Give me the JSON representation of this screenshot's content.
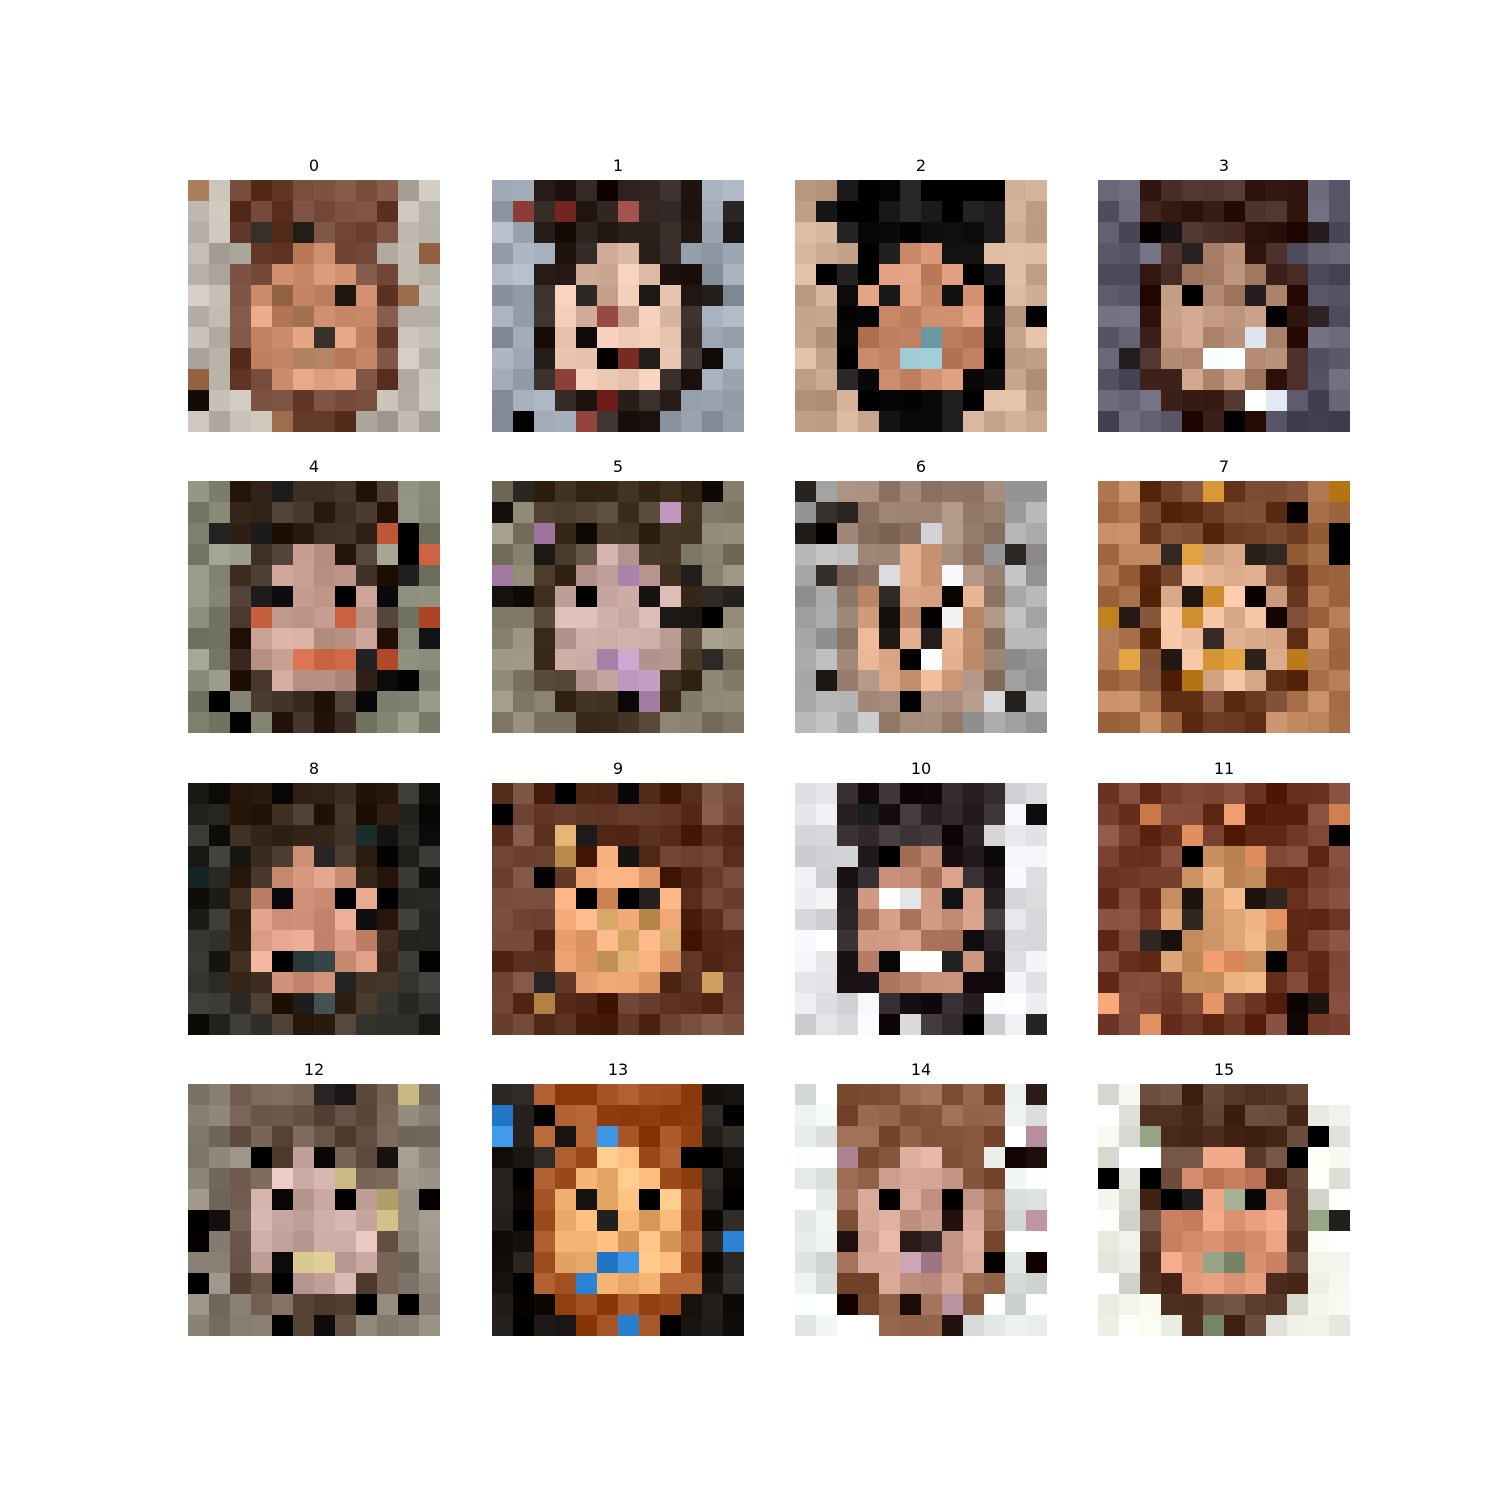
{
  "figure": {
    "panel_labels": [
      "0",
      "1",
      "2",
      "3",
      "4",
      "5",
      "6",
      "7",
      "8",
      "9",
      "10",
      "11",
      "12",
      "13",
      "14",
      "15"
    ],
    "palettes": [
      {
        "bg": "#b8b2a8",
        "hair": "#6a4030",
        "skin": "#d09070",
        "dark": "#1e1810",
        "accent": "#9a6a4a"
      },
      {
        "bg": "#9aa4b0",
        "hair": "#2a1e1a",
        "skin": "#e0bca8",
        "dark": "#140e0c",
        "accent": "#8a3a34"
      },
      {
        "bg": "#caa890",
        "hair": "#0c0a0a",
        "skin": "#c88868",
        "dark": "#050505",
        "accent": "#88b4c0"
      },
      {
        "bg": "#5a5868",
        "hair": "#3a2018",
        "skin": "#b89078",
        "dark": "#100808",
        "accent": "#e8eef6"
      },
      {
        "bg": "#8a8a78",
        "hair": "#3a2a20",
        "skin": "#c0988c",
        "dark": "#060608",
        "accent": "#c86040"
      },
      {
        "bg": "#8a8470",
        "hair": "#4a3a2a",
        "skin": "#c8a8a0",
        "dark": "#100c0a",
        "accent": "#b890b8"
      },
      {
        "bg": "#a8a8a8",
        "hair": "#9a8070",
        "skin": "#d4a080",
        "dark": "#18120e",
        "accent": "#e8e8ea"
      },
      {
        "bg": "#b07850",
        "hair": "#6a3a20",
        "skin": "#e0b090",
        "dark": "#180c06",
        "accent": "#d09030"
      },
      {
        "bg": "#26241e",
        "hair": "#3a2a1e",
        "skin": "#d89a80",
        "dark": "#0a0808",
        "accent": "#2a3a3a"
      },
      {
        "bg": "#6a4030",
        "hair": "#5a3020",
        "skin": "#e8a070",
        "dark": "#0a0606",
        "accent": "#d0a060"
      },
      {
        "bg": "#e8eaee",
        "hair": "#2a2224",
        "skin": "#c08870",
        "dark": "#08080a",
        "accent": "#f4f4f6"
      },
      {
        "bg": "#7a4030",
        "hair": "#6a3420",
        "skin": "#d8a070",
        "dark": "#140a06",
        "accent": "#e09060"
      },
      {
        "bg": "#8a8274",
        "hair": "#6a5648",
        "skin": "#d0b0a8",
        "dark": "#0a0606",
        "accent": "#c8b880"
      },
      {
        "bg": "#1a1410",
        "hair": "#a05020",
        "skin": "#f0b070",
        "dark": "#080604",
        "accent": "#3a90e0"
      },
      {
        "bg": "#e8ece8",
        "hair": "#8a5a40",
        "skin": "#d0a090",
        "dark": "#1a0a08",
        "accent": "#b890a0"
      },
      {
        "bg": "#eceee6",
        "hair": "#5a3a2a",
        "skin": "#d89070",
        "dark": "#0a0606",
        "accent": "#90a080"
      }
    ]
  }
}
